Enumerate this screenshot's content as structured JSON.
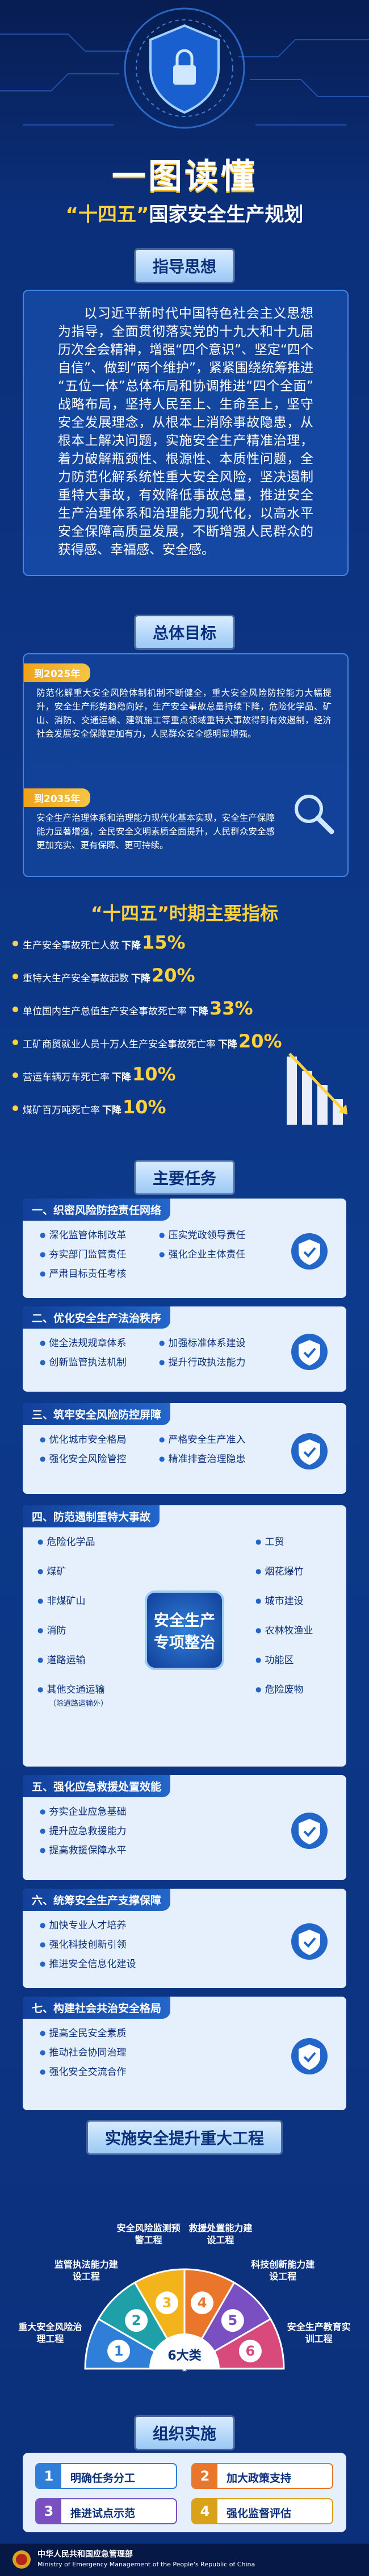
{
  "header": {
    "title": "一图读懂",
    "subtitle": {
      "highlight": "“十四五”",
      "rest": "国家安全生产规划"
    }
  },
  "guiding": {
    "heading": "指导思想",
    "text": "以习近平新时代中国特色社会主义思想为指导，全面贯彻落实党的十九大和十九届历次全会精神，增强“四个意识”、坚定“四个自信”、做到“两个维护”，紧紧围绕统筹推进“五位一体”总体布局和协调推进“四个全面”战略布局，坚持人民至上、生命至上，坚守安全发展理念，从根本上消除事故隐患，从根本上解决问题，实施安全生产精准治理，着力破解瓶颈性、根源性、本质性问题，全力防范化解系统性重大安全风险，坚决遏制重特大事故，有效降低事故总量，推进安全生产治理体系和治理能力现代化，以高水平安全保障高质量发展，不断增强人民群众的获得感、幸福感、安全感。"
  },
  "goals": {
    "heading": "总体目标",
    "items": [
      {
        "year": "到2025年",
        "text": "防范化解重大安全风险体制机制不断健全，重大安全风险防控能力大幅提升，安全生产形势趋稳向好，生产安全事故总量持续下降，危险化学品、矿山、消防、交通运输、建筑施工等重点领域重特大事故得到有效遏制，经济社会发展安全保障更加有力，人民群众安全感明显增强。"
      },
      {
        "year": "到2035年",
        "text": "安全生产治理体系和治理能力现代化基本实现，安全生产保障能力显著增强，全民安全文明素质全面提升，人民群众安全感更加充实、更有保障、更可持续。"
      }
    ]
  },
  "indicators": {
    "heading": "“十四五”时期主要指标",
    "items": [
      {
        "label": "生产安全事故死亡人数",
        "change": "下降",
        "value": "15%"
      },
      {
        "label": "重特大生产安全事故起数",
        "change": "下降",
        "value": "20%"
      },
      {
        "label": "单位国内生产总值生产安全事故死亡率",
        "change": "下降",
        "value": "33%"
      },
      {
        "label": "工矿商贸就业人员十万人生产安全事故死亡率",
        "change": "下降",
        "value": "20%"
      },
      {
        "label": "营运车辆万车死亡率",
        "change": "下降",
        "value": "10%"
      },
      {
        "label": "煤矿百万吨死亡率",
        "change": "下降",
        "value": "10%"
      }
    ]
  },
  "tasks": {
    "heading": "主要任务",
    "groups": [
      {
        "title": "一、织密风险防控责任网络",
        "items": [
          "深化监管体制改革",
          "压实党政领导责任",
          "夯实部门监管责任",
          "强化企业主体责任",
          "严肃目标责任考核"
        ]
      },
      {
        "title": "二、优化安全生产法治秩序",
        "items": [
          "健全法规规章体系",
          "加强标准体系建设",
          "创新监管执法机制",
          "提升行政执法能力"
        ]
      },
      {
        "title": "三、筑牢安全风险防控屏障",
        "items": [
          "优化城市安全格局",
          "严格安全生产准入",
          "强化安全风险管控",
          "精准排查治理隐患"
        ]
      },
      {
        "title": "四、防范遏制重特大事故",
        "center": "安全生产专项整治",
        "left": [
          "危险化学品",
          "煤矿",
          "非煤矿山",
          "消防",
          "道路运输",
          "其他交通运输"
        ],
        "note": "（除道路运输外）",
        "right": [
          "工贸",
          "烟花爆竹",
          "城市建设",
          "农林牧渔业",
          "功能区",
          "危险废物"
        ]
      },
      {
        "title": "五、强化应急救援处置效能",
        "items": [
          "夯实企业应急基础",
          "提升应急救援能力",
          "提高救援保障水平"
        ]
      },
      {
        "title": "六、统筹安全生产支撑保障",
        "items": [
          "加快专业人才培养",
          "强化科技创新引领",
          "推进安全信息化建设"
        ]
      },
      {
        "title": "七、构建社会共治安全格局",
        "items": [
          "提高全民安全素质",
          "推动社会协同治理",
          "强化安全交流合作"
        ]
      }
    ]
  },
  "projects": {
    "heading": "实施安全提升重大工程",
    "center": "6大类",
    "items": [
      {
        "number": "1",
        "label": "重大安全风险治理工程"
      },
      {
        "number": "2",
        "label": "监管执法能力建设工程"
      },
      {
        "number": "3",
        "label": "安全风险监测预警工程"
      },
      {
        "number": "4",
        "label": "救援处置能力建设工程"
      },
      {
        "number": "5",
        "label": "科技创新能力建设工程"
      },
      {
        "number": "6",
        "label": "安全生产教育实训工程"
      }
    ]
  },
  "organize": {
    "heading": "组织实施",
    "items": [
      {
        "number": "1",
        "label": "明确任务分工"
      },
      {
        "number": "2",
        "label": "加大政策支持"
      },
      {
        "number": "3",
        "label": "推进试点示范"
      },
      {
        "number": "4",
        "label": "强化监督评估"
      }
    ]
  },
  "footer": {
    "cn": "中华人民共和国应急管理部",
    "en": "Ministry of Emergency Management of the People's Republic of China"
  }
}
